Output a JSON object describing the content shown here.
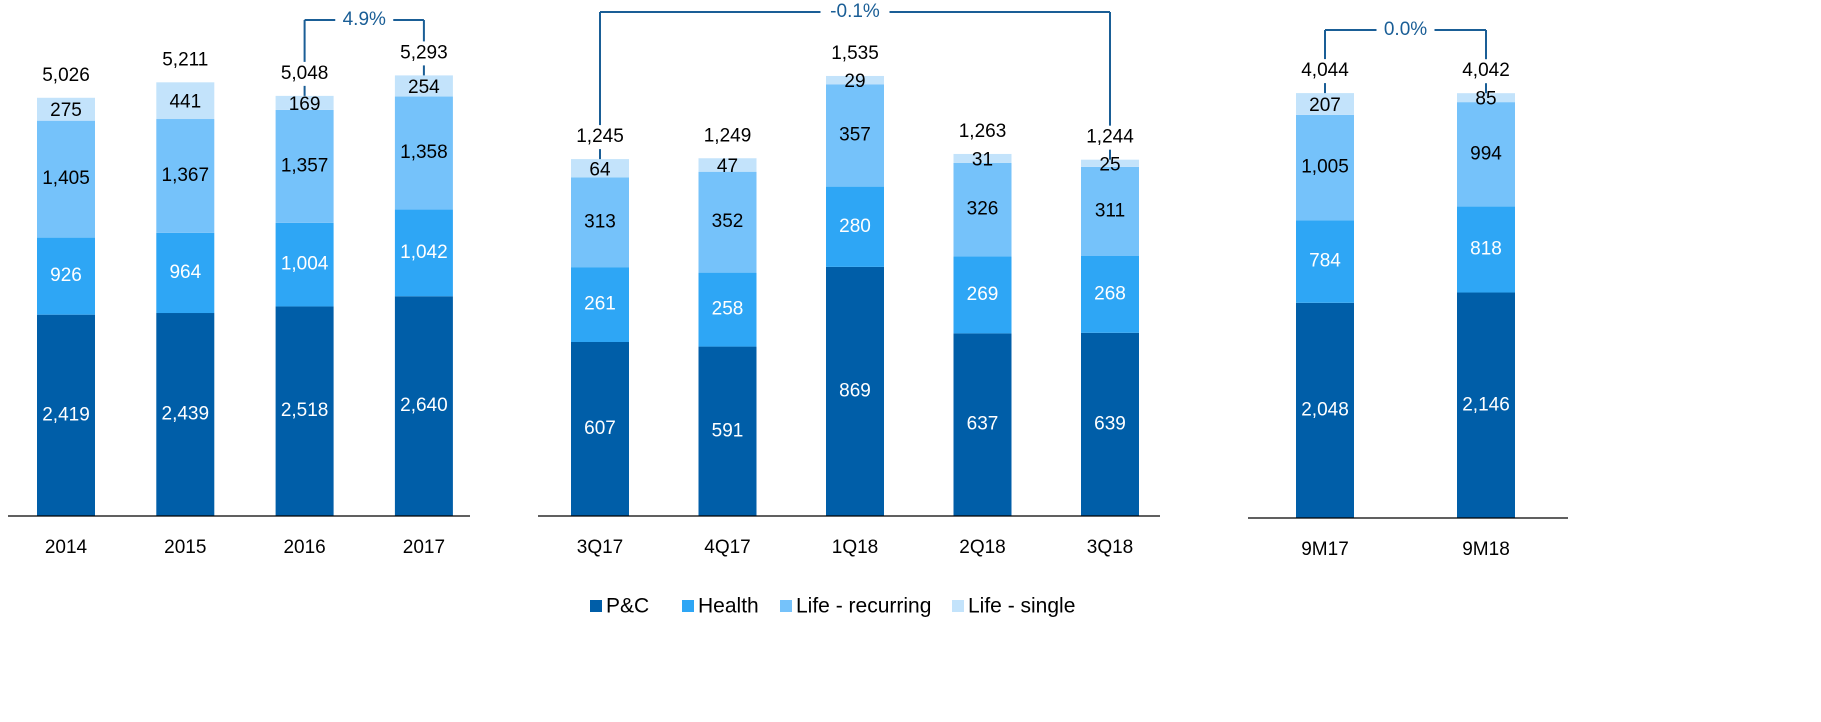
{
  "chart_data": [
    {
      "type": "bar",
      "stacked": true,
      "categories": [
        "2014",
        "2015",
        "2016",
        "2017"
      ],
      "series": [
        {
          "name": "P&C",
          "color": "#005ea8",
          "values": [
            2419,
            2439,
            2518,
            2640
          ],
          "value_labels": [
            "2,419",
            "2,439",
            "2,518",
            "2,640"
          ]
        },
        {
          "name": "Health",
          "color": "#2ea6f5",
          "values": [
            926,
            964,
            1004,
            1042
          ],
          "value_labels": [
            "926",
            "964",
            "1,004",
            "1,042"
          ]
        },
        {
          "name": "Life - recurring",
          "color": "#75c2fa",
          "values": [
            1405,
            1367,
            1357,
            1358
          ],
          "value_labels": [
            "1,405",
            "1,367",
            "1,357",
            "1,358"
          ]
        },
        {
          "name": "Life - single",
          "color": "#c3e3fb",
          "values": [
            275,
            441,
            169,
            254
          ]
        }
      ],
      "totals": [
        5026,
        5211,
        5048,
        5293
      ],
      "total_labels": [
        "5,026",
        "5,211",
        "5,048",
        "5,293"
      ],
      "annotation": {
        "text": "4.9%",
        "from": "2016",
        "to": "2017"
      },
      "ylim": [
        0,
        6200
      ]
    },
    {
      "type": "bar",
      "stacked": true,
      "categories": [
        "3Q17",
        "4Q17",
        "1Q18",
        "2Q18",
        "3Q18"
      ],
      "series": [
        {
          "name": "P&C",
          "color": "#005ea8",
          "values": [
            607,
            591,
            869,
            637,
            639
          ]
        },
        {
          "name": "Health",
          "color": "#2ea6f5",
          "values": [
            261,
            258,
            280,
            269,
            268
          ]
        },
        {
          "name": "Life - recurring",
          "color": "#75c2fa",
          "values": [
            313,
            352,
            357,
            326,
            311
          ]
        },
        {
          "name": "Life - single",
          "color": "#c3e3fb",
          "values": [
            64,
            47,
            29,
            31,
            25
          ]
        }
      ],
      "totals": [
        1245,
        1249,
        1535,
        1263,
        1244
      ],
      "total_labels": [
        "1,245",
        "1,249",
        "1,535",
        "1,263",
        "1,244"
      ],
      "annotation": {
        "text": "-0.1%",
        "from": "3Q17",
        "to": "3Q18"
      },
      "ylim": [
        0,
        1800
      ]
    },
    {
      "type": "bar",
      "stacked": true,
      "categories": [
        "9M17",
        "9M18"
      ],
      "series": [
        {
          "name": "P&C",
          "color": "#005ea8",
          "values": [
            2048,
            2146
          ],
          "value_labels": [
            "2,048",
            "2,146"
          ]
        },
        {
          "name": "Health",
          "color": "#2ea6f5",
          "values": [
            784,
            818
          ]
        },
        {
          "name": "Life - recurring",
          "color": "#75c2fa",
          "values": [
            1005,
            994
          ],
          "value_labels": [
            "1,005",
            "994"
          ]
        },
        {
          "name": "Life - single",
          "color": "#c3e3fb",
          "values": [
            207,
            85
          ]
        }
      ],
      "totals": [
        4044,
        4042
      ],
      "total_labels": [
        "4,044",
        "4,042"
      ],
      "annotation": {
        "text": "0.0%",
        "from": "9M17",
        "to": "9M18"
      },
      "ylim": [
        0,
        4930
      ]
    }
  ]
}
